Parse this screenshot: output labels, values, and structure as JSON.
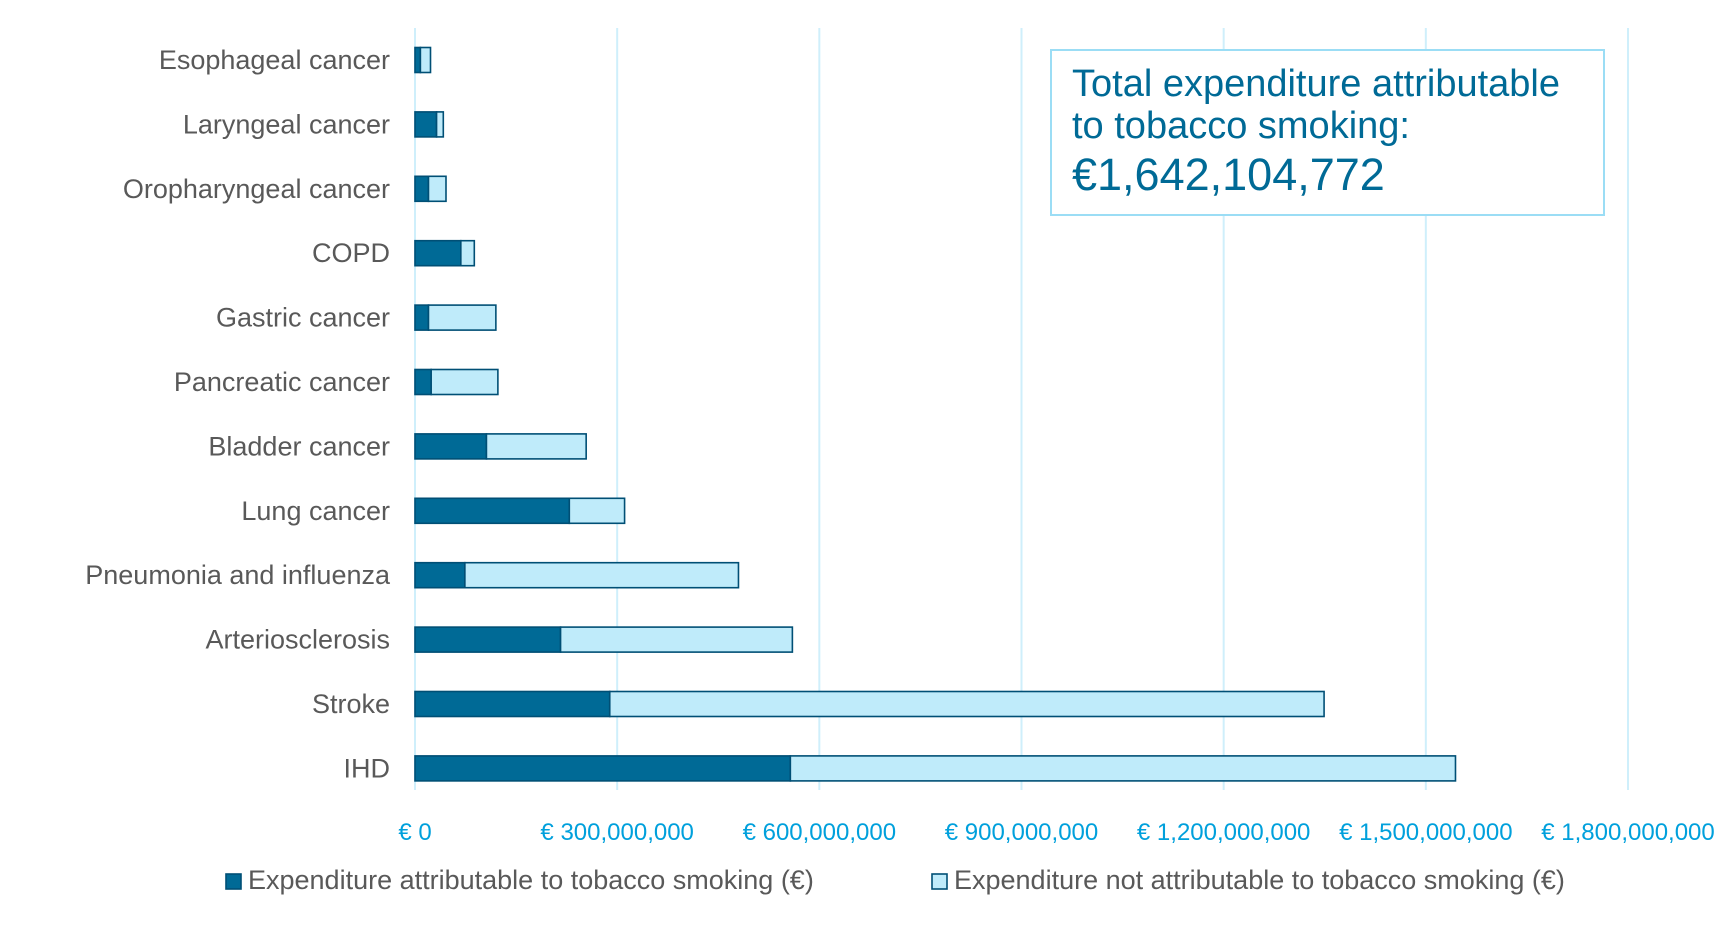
{
  "chart_data": {
    "type": "bar",
    "orientation": "horizontal",
    "stacked": true,
    "categories": [
      "Esophageal cancer",
      "Laryngeal cancer",
      "Oropharyngeal cancer",
      "COPD",
      "Gastric cancer",
      "Pancreatic cancer",
      "Bladder cancer",
      "Lung cancer",
      "Pneumonia and influenza",
      "Arteriosclerosis",
      "Stroke",
      "IHD"
    ],
    "series": [
      {
        "name": "Expenditure attributable to tobacco smoking (€)",
        "color": "#006A96",
        "values": [
          8000000,
          32000000,
          20000000,
          68000000,
          20000000,
          24000000,
          106000000,
          229000000,
          74000000,
          216000000,
          289000000,
          557000000
        ]
      },
      {
        "name": "Expenditure not attributable to tobacco smoking (€)",
        "color": "#BFEBFA",
        "values": [
          15000000,
          10000000,
          26000000,
          20000000,
          100000000,
          99000000,
          148000000,
          82000000,
          406000000,
          344000000,
          1060000000,
          987000000
        ]
      }
    ],
    "xlim": [
      0,
      1800000000
    ],
    "xticks": [
      0,
      300000000,
      600000000,
      900000000,
      1200000000,
      1500000000,
      1800000000
    ],
    "xtick_labels": [
      "€ 0",
      "€ 300,000,000",
      "€ 600,000,000",
      "€ 900,000,000",
      "€ 1,200,000,000",
      "€ 1,500,000,000",
      "€ 1,800,000,000"
    ],
    "grid": true,
    "legend_position": "bottom",
    "xlabel": "",
    "ylabel": ""
  },
  "total_box": {
    "label": "Total expenditure attributable to tobacco smoking:",
    "value": "€1,642,104,772"
  }
}
